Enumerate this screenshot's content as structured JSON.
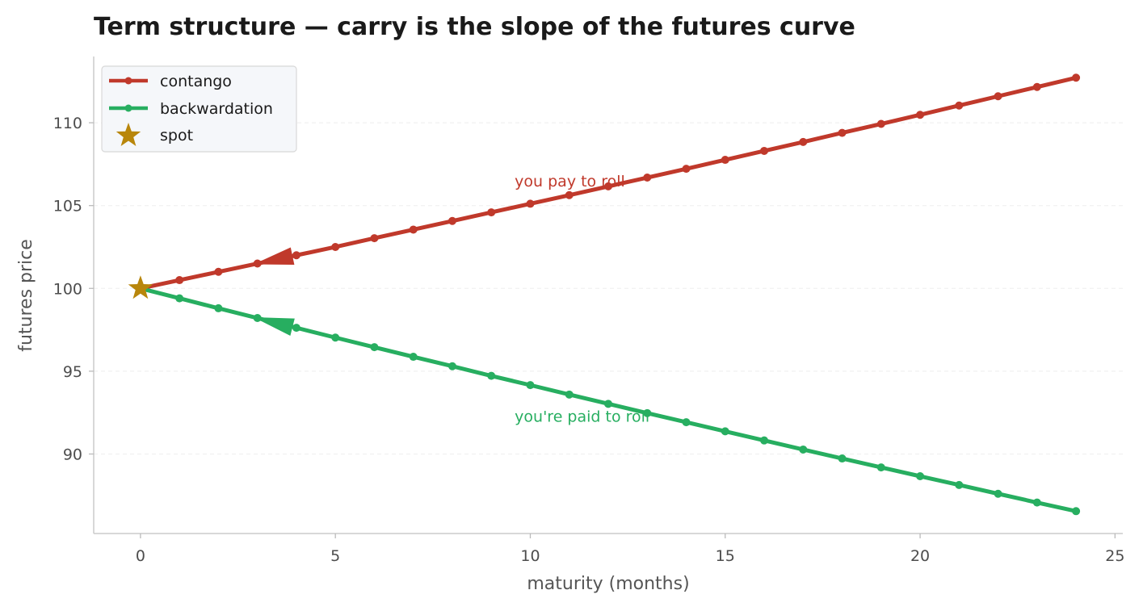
{
  "chart_data": {
    "type": "line",
    "title": "Term structure — carry is the slope of the futures curve",
    "xlabel": "maturity (months)",
    "ylabel": "futures price",
    "xlim": [
      -1.2,
      25.2
    ],
    "ylim": [
      85.2,
      114.0
    ],
    "xticks": [
      0,
      5,
      10,
      15,
      20,
      25
    ],
    "yticks": [
      90,
      95,
      100,
      105,
      110
    ],
    "grid": "horizontal dashed",
    "legend": {
      "position": "top-left"
    },
    "series": [
      {
        "name": "contango",
        "color": "#c0392b",
        "x": [
          0,
          1,
          2,
          3,
          4,
          5,
          6,
          7,
          8,
          9,
          10,
          11,
          12,
          13,
          14,
          15,
          16,
          17,
          18,
          19,
          20,
          21,
          22,
          23,
          24
        ],
        "values": [
          100.0,
          100.5,
          101.0,
          101.5,
          102.0,
          102.5,
          103.03,
          103.55,
          104.07,
          104.59,
          105.11,
          105.63,
          106.16,
          106.69,
          107.22,
          107.76,
          108.3,
          108.84,
          109.39,
          109.93,
          110.48,
          111.04,
          111.6,
          112.16,
          112.72
        ]
      },
      {
        "name": "backwardation",
        "color": "#27ae60",
        "x": [
          0,
          1,
          2,
          3,
          4,
          5,
          6,
          7,
          8,
          9,
          10,
          11,
          12,
          13,
          14,
          15,
          16,
          17,
          18,
          19,
          20,
          21,
          22,
          23,
          24
        ],
        "values": [
          100.0,
          99.4,
          98.8,
          98.21,
          97.62,
          97.03,
          96.45,
          95.87,
          95.3,
          94.72,
          94.16,
          93.59,
          93.03,
          92.47,
          91.92,
          91.37,
          90.82,
          90.27,
          89.73,
          89.19,
          88.66,
          88.13,
          87.6,
          87.07,
          86.55
        ]
      }
    ],
    "spot": {
      "name": "spot",
      "x": 0,
      "y": 100,
      "color": "#b8860b"
    },
    "annotations": [
      {
        "text": "you pay to roll",
        "x": 9.6,
        "y": 106.5,
        "color": "#c0392b"
      },
      {
        "text": "you're paid to roll",
        "x": 9.6,
        "y": 92.3,
        "color": "#27ae60"
      }
    ],
    "arrows": [
      {
        "series": "contango",
        "at_x": 3.5,
        "at_y": 101.75,
        "direction": "toward-spot"
      },
      {
        "series": "backwardation",
        "at_x": 3.5,
        "at_y": 97.9,
        "direction": "toward-spot"
      }
    ]
  }
}
